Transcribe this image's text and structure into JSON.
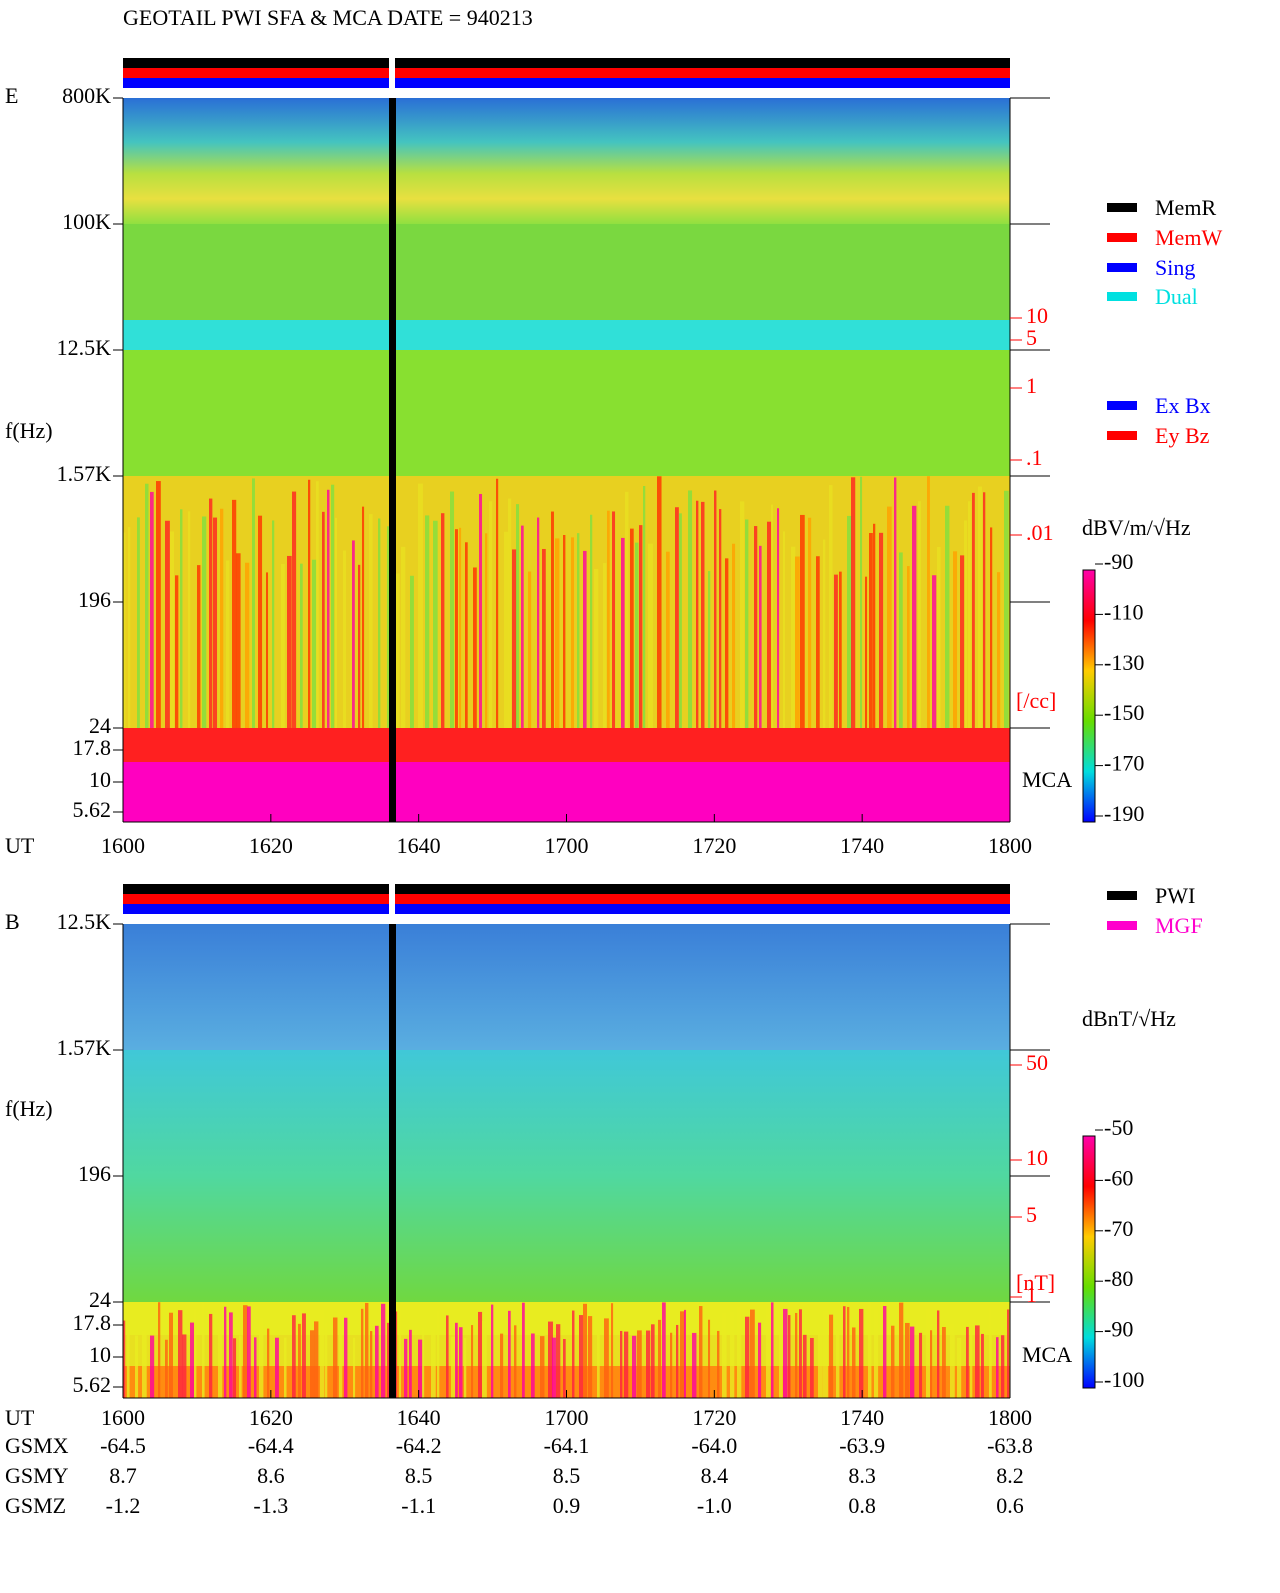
{
  "title": "GEOTAIL   PWI SFA & MCA   DATE = 940213",
  "panels": [
    {
      "label": "E",
      "y_label": "f(Hz)",
      "y_ticks": [
        "800K",
        "100K",
        "12.5K",
        "1.57K",
        "196",
        "24",
        "17.8",
        "10",
        "5.62"
      ],
      "x_label": "UT",
      "x_ticks": [
        "1600",
        "1620",
        "1640",
        "1700",
        "1720",
        "1740",
        "1800"
      ],
      "right_ticks": [
        "10",
        "5",
        "1",
        ".1",
        ".01"
      ],
      "right_unit": "[/cc]",
      "mca": "MCA",
      "colorbar_title": "dBV/m/√Hz",
      "colorbar_ticks": [
        "-90",
        "-110",
        "-130",
        "-150",
        "-170",
        "-190"
      ],
      "legend": [
        {
          "name": "MemR",
          "color": "#000000"
        },
        {
          "name": "MemW",
          "color": "#ff0000"
        },
        {
          "name": "Sing",
          "color": "#0000ff"
        },
        {
          "name": "Dual",
          "color": "#00e0e0"
        }
      ],
      "legend2": [
        {
          "name": "Ex Bx",
          "color": "#0000ff"
        },
        {
          "name": "Ey Bz",
          "color": "#ff0000"
        }
      ]
    },
    {
      "label": "B",
      "y_label": "f(Hz)",
      "y_ticks": [
        "12.5K",
        "1.57K",
        "196",
        "24",
        "17.8",
        "10",
        "5.62"
      ],
      "x_label": "UT",
      "x_ticks": [
        "1600",
        "1620",
        "1640",
        "1700",
        "1720",
        "1740",
        "1800"
      ],
      "right_ticks": [
        "50",
        "10",
        "5",
        "1"
      ],
      "right_unit": "[nT]",
      "mca": "MCA",
      "colorbar_title": "dBnT/√Hz",
      "colorbar_ticks": [
        "-50",
        "-60",
        "-70",
        "-80",
        "-90",
        "-100"
      ],
      "legend": [
        {
          "name": "PWI",
          "color": "#000000"
        },
        {
          "name": "MGF",
          "color": "#ff00cc"
        }
      ]
    }
  ],
  "orbit": [
    {
      "name": "GSMX",
      "values": [
        "-64.5",
        "-64.4",
        "-64.2",
        "-64.1",
        "-64.0",
        "-63.9",
        "-63.8"
      ]
    },
    {
      "name": "GSMY",
      "values": [
        "8.7",
        "8.6",
        "8.5",
        "8.5",
        "8.4",
        "8.3",
        "8.2"
      ]
    },
    {
      "name": "GSMZ",
      "values": [
        "-1.2",
        "-1.3",
        "-1.1",
        "0.9",
        "-1.0",
        "0.8",
        "0.6"
      ]
    }
  ]
}
